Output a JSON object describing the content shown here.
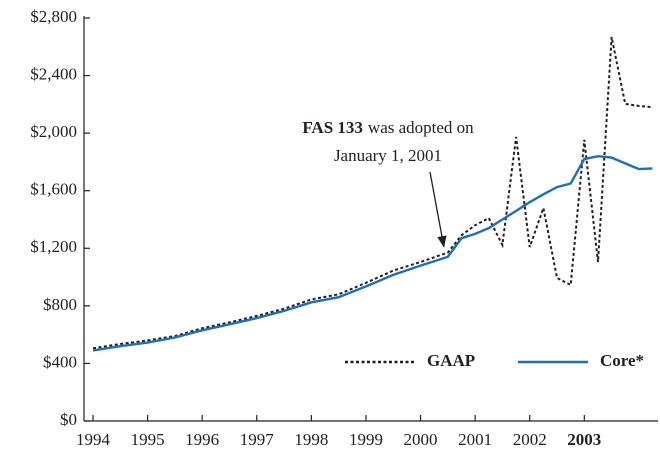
{
  "chart_data": {
    "type": "line",
    "x": [
      1994.0,
      1994.5,
      1995.0,
      1995.5,
      1996.0,
      1996.5,
      1997.0,
      1997.5,
      1998.0,
      1998.5,
      1999.0,
      1999.5,
      2000.0,
      2000.5,
      2000.75,
      2001.0,
      2001.25,
      2001.5,
      2001.75,
      2002.0,
      2002.25,
      2002.5,
      2002.75,
      2003.0,
      2003.25,
      2003.5,
      2003.75,
      2004.0,
      2004.25
    ],
    "series": [
      {
        "name": "GAAP",
        "color": "#231f20",
        "dash": true,
        "values": [
          505,
          535,
          560,
          590,
          645,
          685,
          730,
          780,
          845,
          880,
          960,
          1045,
          1105,
          1170,
          1290,
          1360,
          1410,
          1223,
          1973,
          1209,
          1480,
          994,
          945,
          1953,
          1105,
          2668,
          2203,
          2189,
          2180
        ]
      },
      {
        "name": "Core*",
        "color": "#1f6fb2",
        "dash": false,
        "values": [
          490,
          520,
          545,
          580,
          630,
          672,
          715,
          765,
          825,
          860,
          935,
          1015,
          1080,
          1140,
          1270,
          1300,
          1340,
          1400,
          1460,
          1520,
          1575,
          1625,
          1650,
          1820,
          1840,
          1830,
          1790,
          1750,
          1755
        ]
      }
    ],
    "annotation": {
      "bold": "FAS 133",
      "line1": "was adopted on",
      "line2": "January 1, 2001",
      "x": 2000.5,
      "y": 1170
    },
    "xlim": [
      1993.835,
      2004.35
    ],
    "xticks": [
      1994,
      1995,
      1996,
      1997,
      1998,
      1999,
      2000,
      2001,
      2002,
      2003
    ],
    "ylim": [
      0,
      2800
    ],
    "yticks": [
      {
        "value": 0,
        "label": "$0"
      },
      {
        "value": 400,
        "label": "$400"
      },
      {
        "value": 800,
        "label": "$800"
      },
      {
        "value": 1200,
        "label": "$1,200"
      },
      {
        "value": 1600,
        "label": "$1,600"
      },
      {
        "value": 2000,
        "label": "$2,000"
      },
      {
        "value": 2400,
        "label": "$2,400"
      },
      {
        "value": 2800,
        "label": "$2,800"
      }
    ],
    "grid": false,
    "legend": "lower right"
  }
}
